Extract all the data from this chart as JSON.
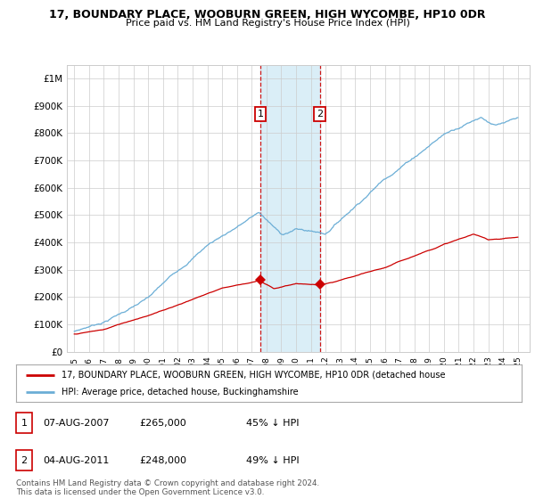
{
  "title": "17, BOUNDARY PLACE, WOOBURN GREEN, HIGH WYCOMBE, HP10 0DR",
  "subtitle": "Price paid vs. HM Land Registry's House Price Index (HPI)",
  "ytick_values": [
    0,
    100000,
    200000,
    300000,
    400000,
    500000,
    600000,
    700000,
    800000,
    900000,
    1000000
  ],
  "ylim": [
    0,
    1050000
  ],
  "hpi_color": "#6baed6",
  "price_color": "#cc0000",
  "sale1_date": "07-AUG-2007",
  "sale1_price": 265000,
  "sale1_pct": "45%",
  "sale2_date": "04-AUG-2011",
  "sale2_price": 248000,
  "sale2_pct": "49%",
  "sale1_x": 2007.6,
  "sale2_x": 2011.6,
  "legend_line1": "17, BOUNDARY PLACE, WOOBURN GREEN, HIGH WYCOMBE, HP10 0DR (detached house",
  "legend_line2": "HPI: Average price, detached house, Buckinghamshire",
  "footer": "Contains HM Land Registry data © Crown copyright and database right 2024.\nThis data is licensed under the Open Government Licence v3.0.",
  "background_color": "#ffffff",
  "shaded_region_color": "#daeef7",
  "grid_color": "#cccccc"
}
